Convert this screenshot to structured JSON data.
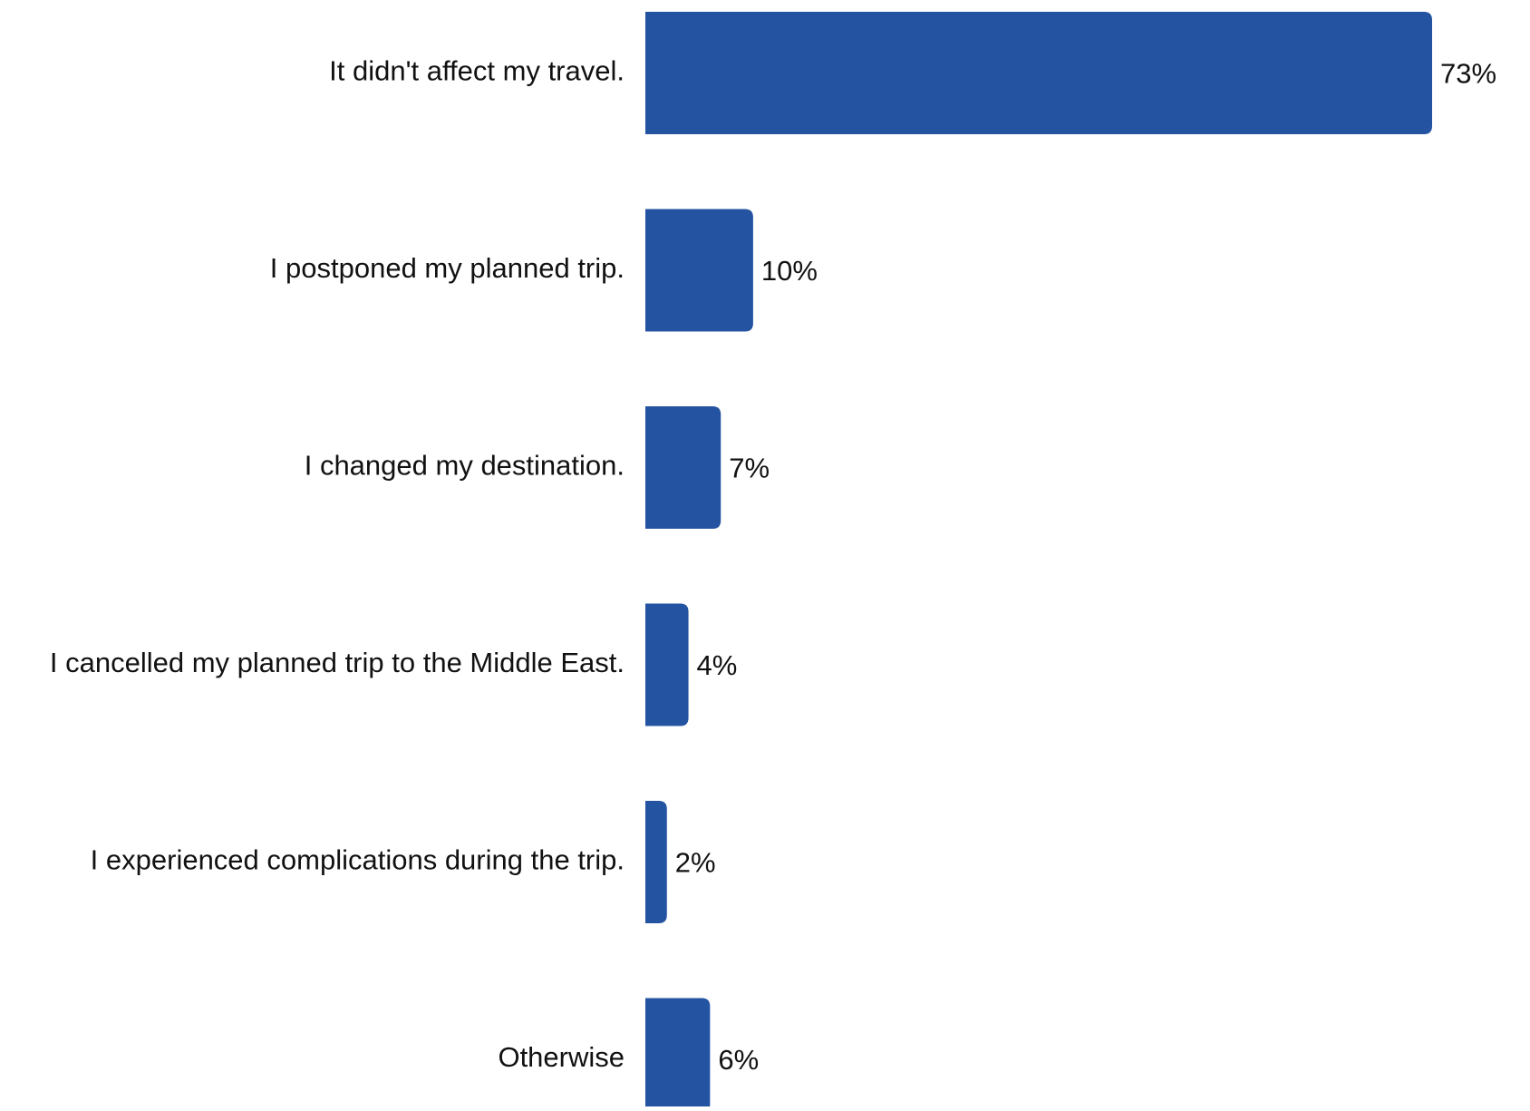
{
  "chart_data": {
    "type": "bar",
    "orientation": "horizontal",
    "categories": [
      "It didn't affect my travel.",
      "I postponed my planned trip.",
      "I changed my destination.",
      "I cancelled my planned trip to the Middle East.",
      "I experienced complications during the trip.",
      "Otherwise"
    ],
    "values": [
      73,
      10,
      7,
      4,
      2,
      6
    ],
    "value_labels": [
      "73%",
      "10%",
      "7%",
      "4%",
      "2%",
      "6%"
    ],
    "unit": "%",
    "xlim": [
      0,
      73
    ],
    "bar_color": "#2353A1",
    "text_color": "#111111",
    "grid": false,
    "legend": "none",
    "axes_visible": false
  }
}
